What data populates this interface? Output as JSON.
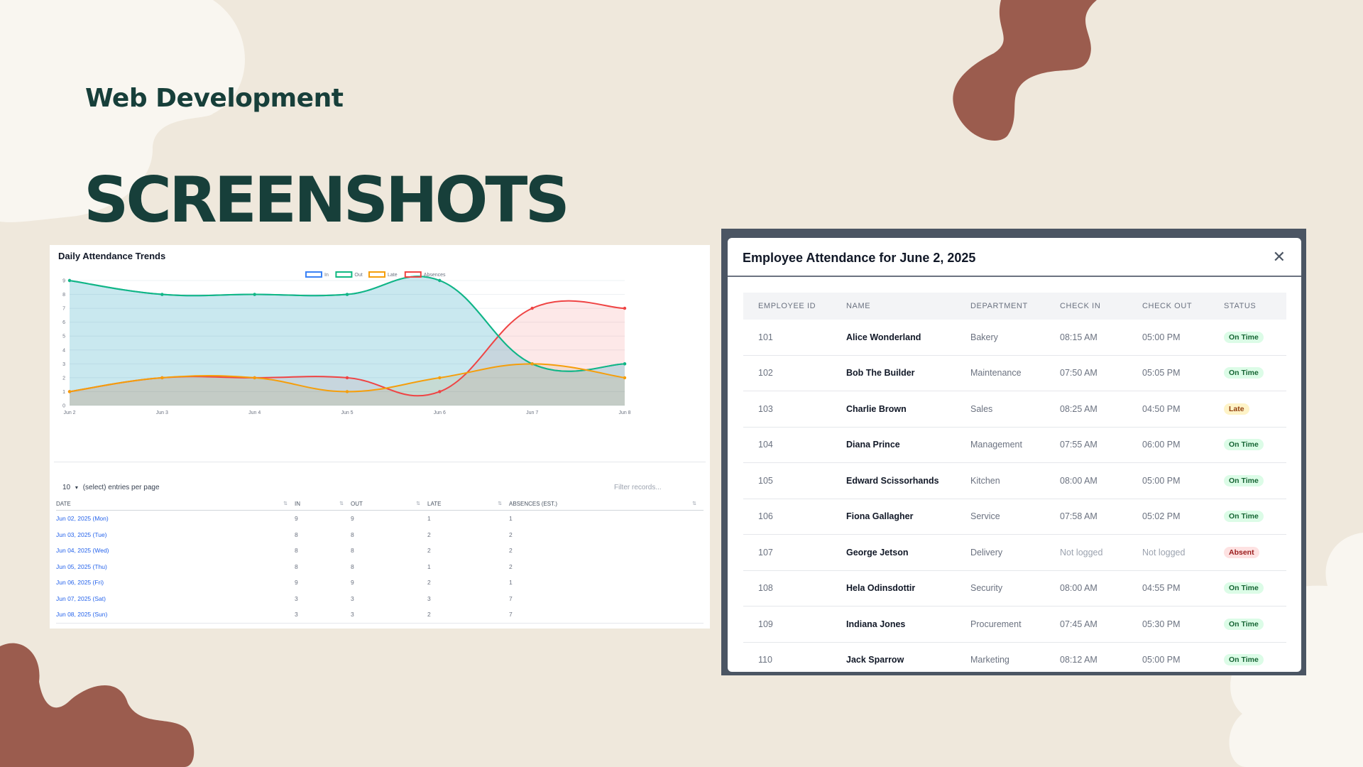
{
  "slide": {
    "kicker": "Web Development",
    "headline": "SCREENSHOTS"
  },
  "colors": {
    "in": "#3b82f6",
    "out": "#10b981",
    "late": "#f59e0b",
    "absences": "#ef4444",
    "brand": "#173f3a",
    "accent": "#9b5c4e"
  },
  "chart_data": {
    "type": "area",
    "title": "Daily Attendance Trends",
    "categories": [
      "Jun 2",
      "Jun 3",
      "Jun 4",
      "Jun 5",
      "Jun 6",
      "Jun 7",
      "Jun 8"
    ],
    "ylim": [
      0,
      9
    ],
    "yticks": [
      "0",
      "1",
      "2",
      "3",
      "4",
      "5",
      "6",
      "7",
      "8",
      "9"
    ],
    "legend_position": "top-center",
    "series": [
      {
        "name": "In",
        "values": [
          9,
          8,
          8,
          8,
          9,
          3,
          3
        ]
      },
      {
        "name": "Out",
        "values": [
          9,
          8,
          8,
          8,
          9,
          3,
          3
        ]
      },
      {
        "name": "Late",
        "values": [
          1,
          2,
          2,
          1,
          2,
          3,
          2
        ]
      },
      {
        "name": "Absences",
        "values": [
          1,
          2,
          2,
          2,
          1,
          7,
          7
        ]
      }
    ]
  },
  "left_table": {
    "page_size": "10",
    "page_size_label": "(select) entries per page",
    "filter_placeholder": "Filter records...",
    "headers": [
      "DATE",
      "IN",
      "OUT",
      "LATE",
      "ABSENCES (EST.)"
    ],
    "rows": [
      [
        "Jun 02, 2025 (Mon)",
        "9",
        "9",
        "1",
        "1"
      ],
      [
        "Jun 03, 2025 (Tue)",
        "8",
        "8",
        "2",
        "2"
      ],
      [
        "Jun 04, 2025 (Wed)",
        "8",
        "8",
        "2",
        "2"
      ],
      [
        "Jun 05, 2025 (Thu)",
        "8",
        "8",
        "1",
        "2"
      ],
      [
        "Jun 06, 2025 (Fri)",
        "9",
        "9",
        "2",
        "1"
      ],
      [
        "Jun 07, 2025 (Sat)",
        "3",
        "3",
        "3",
        "7"
      ],
      [
        "Jun 08, 2025 (Sun)",
        "3",
        "3",
        "2",
        "7"
      ]
    ]
  },
  "modal": {
    "title": "Employee Attendance for June 2, 2025",
    "close_icon": "close-icon",
    "headers": [
      "EMPLOYEE ID",
      "NAME",
      "DEPARTMENT",
      "CHECK IN",
      "CHECK OUT",
      "STATUS"
    ],
    "rows": [
      {
        "id": "101",
        "name": "Alice Wonderland",
        "dept": "Bakery",
        "in": "08:15 AM",
        "out": "05:00 PM",
        "status": "On Time",
        "kind": "on"
      },
      {
        "id": "102",
        "name": "Bob The Builder",
        "dept": "Maintenance",
        "in": "07:50 AM",
        "out": "05:05 PM",
        "status": "On Time",
        "kind": "on"
      },
      {
        "id": "103",
        "name": "Charlie Brown",
        "dept": "Sales",
        "in": "08:25 AM",
        "out": "04:50 PM",
        "status": "Late",
        "kind": "late"
      },
      {
        "id": "104",
        "name": "Diana Prince",
        "dept": "Management",
        "in": "07:55 AM",
        "out": "06:00 PM",
        "status": "On Time",
        "kind": "on"
      },
      {
        "id": "105",
        "name": "Edward Scissorhands",
        "dept": "Kitchen",
        "in": "08:00 AM",
        "out": "05:00 PM",
        "status": "On Time",
        "kind": "on"
      },
      {
        "id": "106",
        "name": "Fiona Gallagher",
        "dept": "Service",
        "in": "07:58 AM",
        "out": "05:02 PM",
        "status": "On Time",
        "kind": "on"
      },
      {
        "id": "107",
        "name": "George Jetson",
        "dept": "Delivery",
        "in": "Not logged",
        "out": "Not logged",
        "status": "Absent",
        "kind": "absent"
      },
      {
        "id": "108",
        "name": "Hela Odinsdottir",
        "dept": "Security",
        "in": "08:00 AM",
        "out": "04:55 PM",
        "status": "On Time",
        "kind": "on"
      },
      {
        "id": "109",
        "name": "Indiana Jones",
        "dept": "Procurement",
        "in": "07:45 AM",
        "out": "05:30 PM",
        "status": "On Time",
        "kind": "on"
      },
      {
        "id": "110",
        "name": "Jack Sparrow",
        "dept": "Marketing",
        "in": "08:12 AM",
        "out": "05:00 PM",
        "status": "On Time",
        "kind": "on"
      }
    ]
  }
}
